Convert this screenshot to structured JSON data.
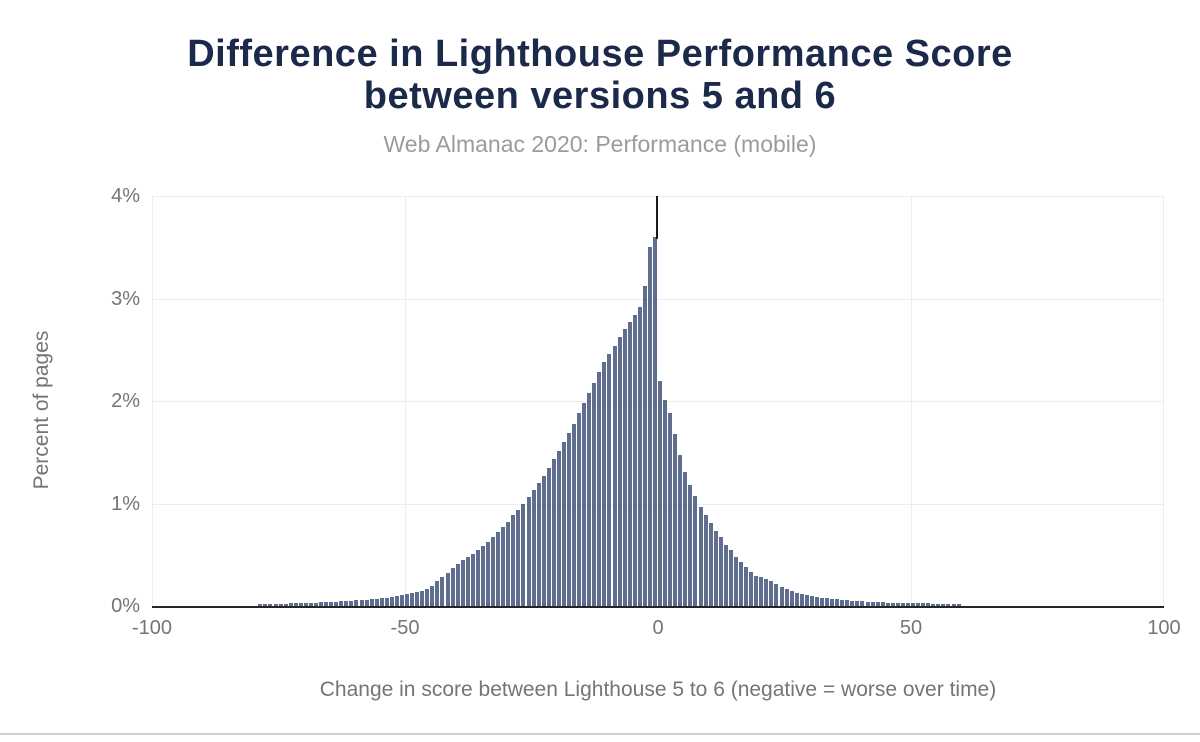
{
  "title": {
    "line1": "Difference in Lighthouse Performance Score",
    "line2": "between versions 5 and 6"
  },
  "subtitle": "Web Almanac 2020: Performance (mobile)",
  "colors": {
    "title_color": "#1b2a4a",
    "subtitle_color": "#9b9b9b",
    "axis_text": "#757575",
    "gridline": "#ededed",
    "axis_line": "#262626",
    "zero_line": "#1a1a1a",
    "bar_color": "#5f6e8e",
    "divider": "#ccd0d5"
  },
  "chart_data": {
    "type": "bar",
    "title": "Difference in Lighthouse Performance Score between versions 5 and 6",
    "subtitle": "Web Almanac 2020: Performance (mobile)",
    "xlabel": "Change in score between Lighthouse 5 to 6 (negative = worse over time)",
    "ylabel": "Percent of pages",
    "x_ticks": [
      "-100",
      "-50",
      "0",
      "50",
      "100"
    ],
    "y_ticks": [
      "4%",
      "3%",
      "2%",
      "1%",
      "0%"
    ],
    "xlim": [
      -100,
      100
    ],
    "ylim": [
      0,
      4
    ],
    "grid": true,
    "zero_reference_line_x": 0,
    "legend": "none",
    "x": [
      -78,
      -77,
      -76,
      -75,
      -74,
      -73,
      -72,
      -71,
      -70,
      -69,
      -68,
      -67,
      -66,
      -65,
      -64,
      -63,
      -62,
      -61,
      -60,
      -59,
      -58,
      -57,
      -56,
      -55,
      -54,
      -53,
      -52,
      -51,
      -50,
      -49,
      -48,
      -47,
      -46,
      -45,
      -44,
      -43,
      -42,
      -41,
      -40,
      -39,
      -38,
      -37,
      -36,
      -35,
      -34,
      -33,
      -32,
      -31,
      -30,
      -29,
      -28,
      -27,
      -26,
      -25,
      -24,
      -23,
      -22,
      -21,
      -20,
      -19,
      -18,
      -17,
      -16,
      -15,
      -14,
      -13,
      -12,
      -11,
      -10,
      -9,
      -8,
      -7,
      -6,
      -5,
      -4,
      -3,
      -2,
      -1,
      0,
      1,
      2,
      3,
      4,
      5,
      6,
      7,
      8,
      9,
      10,
      11,
      12,
      13,
      14,
      15,
      16,
      17,
      18,
      19,
      20,
      21,
      22,
      23,
      24,
      25,
      26,
      27,
      28,
      29,
      30,
      31,
      32,
      33,
      34,
      35,
      36,
      37,
      38,
      39,
      40,
      41,
      42,
      43,
      44,
      45,
      46,
      47,
      48,
      49,
      50,
      51,
      52,
      53,
      54,
      55,
      56,
      57,
      58,
      59,
      60
    ],
    "values": [
      0.02,
      0.02,
      0.02,
      0.02,
      0.02,
      0.02,
      0.03,
      0.03,
      0.03,
      0.03,
      0.03,
      0.03,
      0.04,
      0.04,
      0.04,
      0.04,
      0.05,
      0.05,
      0.05,
      0.06,
      0.06,
      0.06,
      0.07,
      0.07,
      0.08,
      0.08,
      0.09,
      0.1,
      0.11,
      0.12,
      0.13,
      0.14,
      0.15,
      0.17,
      0.2,
      0.24,
      0.28,
      0.32,
      0.37,
      0.41,
      0.45,
      0.48,
      0.51,
      0.55,
      0.59,
      0.62,
      0.67,
      0.72,
      0.77,
      0.82,
      0.89,
      0.94,
      1.0,
      1.06,
      1.13,
      1.2,
      1.27,
      1.35,
      1.43,
      1.51,
      1.6,
      1.69,
      1.78,
      1.88,
      1.98,
      2.08,
      2.18,
      2.28,
      2.38,
      2.46,
      2.54,
      2.62,
      2.7,
      2.77,
      2.84,
      2.92,
      3.12,
      3.5,
      3.6,
      2.2,
      2.01,
      1.88,
      1.68,
      1.47,
      1.31,
      1.18,
      1.07,
      0.97,
      0.89,
      0.81,
      0.73,
      0.67,
      0.6,
      0.55,
      0.48,
      0.43,
      0.38,
      0.33,
      0.29,
      0.28,
      0.26,
      0.24,
      0.21,
      0.19,
      0.17,
      0.15,
      0.13,
      0.12,
      0.11,
      0.1,
      0.09,
      0.08,
      0.075,
      0.07,
      0.065,
      0.06,
      0.055,
      0.05,
      0.05,
      0.045,
      0.04,
      0.04,
      0.035,
      0.035,
      0.03,
      0.03,
      0.03,
      0.03,
      0.03,
      0.025,
      0.025,
      0.025,
      0.025,
      0.02,
      0.02,
      0.02,
      0.02,
      0.02,
      0.02
    ]
  }
}
